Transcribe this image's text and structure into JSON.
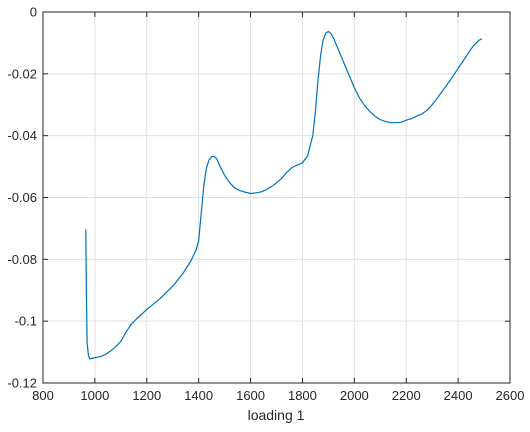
{
  "chart_data": {
    "type": "line",
    "title": "",
    "xlabel": "loading 1",
    "ylabel": "",
    "xlim": [
      800,
      2600
    ],
    "ylim": [
      -0.12,
      0
    ],
    "xticks": [
      800,
      1000,
      1200,
      1400,
      1600,
      1800,
      2000,
      2200,
      2400,
      2600
    ],
    "yticks": [
      -0.12,
      -0.1,
      -0.08,
      -0.06,
      -0.04,
      -0.02,
      0
    ],
    "xtick_labels": [
      "800",
      "1000",
      "1200",
      "1400",
      "1600",
      "1800",
      "2000",
      "2200",
      "2400",
      "2600"
    ],
    "ytick_labels": [
      "-0.12",
      "-0.1",
      "-0.08",
      "-0.06",
      "-0.04",
      "-0.02",
      "0"
    ],
    "grid": true,
    "series": [
      {
        "color": "#0072BD",
        "x": [
          965,
          967,
          970,
          975,
          980,
          990,
          1000,
          1020,
          1040,
          1060,
          1080,
          1100,
          1120,
          1140,
          1160,
          1180,
          1200,
          1250,
          1300,
          1340,
          1370,
          1390,
          1400,
          1410,
          1420,
          1430,
          1440,
          1450,
          1460,
          1470,
          1480,
          1500,
          1520,
          1540,
          1560,
          1580,
          1600,
          1620,
          1640,
          1660,
          1680,
          1700,
          1720,
          1740,
          1760,
          1780,
          1800,
          1820,
          1840,
          1850,
          1860,
          1870,
          1880,
          1890,
          1900,
          1910,
          1920,
          1930,
          1940,
          1950,
          1960,
          1980,
          2000,
          2020,
          2040,
          2060,
          2080,
          2100,
          2120,
          2140,
          2160,
          2180,
          2200,
          2220,
          2240,
          2260,
          2280,
          2300,
          2320,
          2340,
          2360,
          2380,
          2400,
          2420,
          2440,
          2460,
          2480,
          2490
        ],
        "y": [
          -0.0705,
          -0.09,
          -0.107,
          -0.111,
          -0.1122,
          -0.112,
          -0.1118,
          -0.1115,
          -0.1108,
          -0.1097,
          -0.1083,
          -0.1065,
          -0.1035,
          -0.101,
          -0.0993,
          -0.0978,
          -0.0962,
          -0.0928,
          -0.0887,
          -0.0845,
          -0.0805,
          -0.077,
          -0.074,
          -0.065,
          -0.056,
          -0.0505,
          -0.0478,
          -0.0468,
          -0.0467,
          -0.0475,
          -0.0495,
          -0.0528,
          -0.0553,
          -0.057,
          -0.0578,
          -0.0583,
          -0.0587,
          -0.0585,
          -0.0582,
          -0.0575,
          -0.0565,
          -0.0553,
          -0.0538,
          -0.0518,
          -0.0503,
          -0.0495,
          -0.0488,
          -0.0465,
          -0.04,
          -0.032,
          -0.022,
          -0.014,
          -0.009,
          -0.0068,
          -0.0063,
          -0.007,
          -0.0085,
          -0.0105,
          -0.0125,
          -0.0145,
          -0.0165,
          -0.0205,
          -0.0245,
          -0.0278,
          -0.0303,
          -0.0322,
          -0.0337,
          -0.0348,
          -0.0354,
          -0.0358,
          -0.0358,
          -0.0357,
          -0.035,
          -0.0345,
          -0.0337,
          -0.033,
          -0.0318,
          -0.03,
          -0.0278,
          -0.0255,
          -0.0232,
          -0.0208,
          -0.0182,
          -0.0158,
          -0.0132,
          -0.0108,
          -0.0092,
          -0.0087
        ]
      }
    ]
  }
}
